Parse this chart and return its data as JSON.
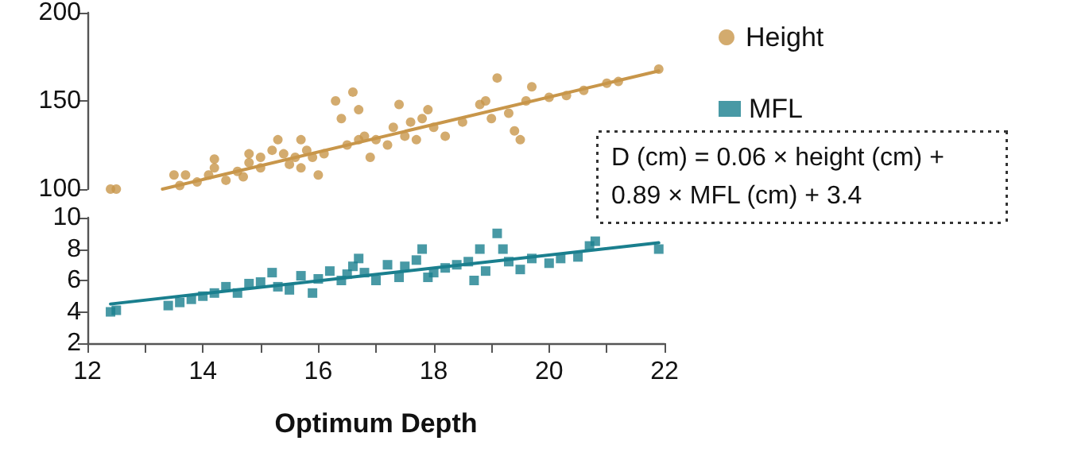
{
  "chart_data": [
    {
      "type": "scatter",
      "xlim": [
        12,
        22
      ],
      "ylim": [
        100,
        200
      ],
      "yticks": [
        100,
        150,
        200
      ],
      "tick_labels": "y",
      "marker": "circle",
      "legend": "right",
      "series": [
        {
          "name": "Height",
          "color": "#c8964a",
          "x": [
            12.4,
            12.5,
            13.5,
            13.7,
            13.6,
            13.9,
            14.1,
            14.2,
            14.2,
            14.4,
            14.6,
            14.7,
            14.8,
            14.8,
            15.0,
            15.0,
            15.2,
            15.3,
            15.4,
            15.5,
            15.6,
            15.7,
            15.7,
            15.8,
            15.9,
            16.0,
            16.1,
            16.3,
            16.4,
            16.5,
            16.6,
            16.7,
            16.7,
            16.8,
            16.9,
            17.0,
            17.2,
            17.3,
            17.4,
            17.5,
            17.6,
            17.7,
            17.8,
            17.9,
            18.0,
            18.2,
            18.5,
            18.8,
            18.9,
            19.0,
            19.1,
            19.3,
            19.4,
            19.5,
            19.6,
            19.7,
            20.0,
            20.3,
            20.6,
            21.0,
            21.2,
            21.9
          ],
          "values": [
            100,
            100,
            108,
            108,
            102,
            104,
            108,
            112,
            117,
            105,
            110,
            107,
            115,
            120,
            118,
            112,
            122,
            128,
            120,
            114,
            118,
            112,
            128,
            122,
            118,
            108,
            120,
            150,
            140,
            125,
            155,
            128,
            145,
            130,
            118,
            128,
            125,
            135,
            148,
            130,
            138,
            128,
            140,
            145,
            135,
            130,
            138,
            148,
            150,
            140,
            163,
            143,
            133,
            128,
            150,
            158,
            152,
            153,
            156,
            160,
            161,
            168
          ]
        },
        {
          "type": "line",
          "color": "#c8964a",
          "x": [
            13.3,
            21.9
          ],
          "values": [
            100,
            167
          ],
          "marker": "none"
        }
      ]
    },
    {
      "type": "scatter",
      "xlim": [
        12,
        22
      ],
      "xticks": [
        12,
        {
          "value": 13,
          "label": null
        },
        14,
        {
          "value": 15,
          "label": null
        },
        16,
        {
          "value": 17,
          "label": null
        },
        18,
        {
          "value": 19,
          "label": null
        },
        20,
        {
          "value": 21,
          "label": null
        },
        22
      ],
      "ylim": [
        2,
        10
      ],
      "yticks": [
        2,
        4,
        6,
        8,
        10
      ],
      "xlabel": "Optimum Depth",
      "marker": "square",
      "legend": "right",
      "annotations": [
        "D (cm) = 0.06 × height (cm) + 0.89 × MFL (cm) + 3.4"
      ],
      "series": [
        {
          "name": "MFL",
          "color": "#1a7f8e",
          "x": [
            12.4,
            12.5,
            13.4,
            13.6,
            13.8,
            14.0,
            14.2,
            14.4,
            14.6,
            14.8,
            15.0,
            15.2,
            15.3,
            15.5,
            15.7,
            15.9,
            16.0,
            16.2,
            16.4,
            16.5,
            16.6,
            16.7,
            16.8,
            17.0,
            17.2,
            17.4,
            17.5,
            17.7,
            17.8,
            17.9,
            18.0,
            18.2,
            18.4,
            18.6,
            18.7,
            18.8,
            18.9,
            19.1,
            19.2,
            19.3,
            19.5,
            19.7,
            20.0,
            20.2,
            20.5,
            20.7,
            20.8,
            21.9
          ],
          "values": [
            4.0,
            4.1,
            4.4,
            4.6,
            4.8,
            5.0,
            5.2,
            5.6,
            5.2,
            5.8,
            5.9,
            6.5,
            5.6,
            5.4,
            6.3,
            5.2,
            6.1,
            6.6,
            6.0,
            6.4,
            6.9,
            7.4,
            6.5,
            6.0,
            7.0,
            6.2,
            6.9,
            7.3,
            8.0,
            6.2,
            6.5,
            6.8,
            7.0,
            7.2,
            6.0,
            8.0,
            6.6,
            9.0,
            8.0,
            7.2,
            6.7,
            7.4,
            7.1,
            7.4,
            7.5,
            8.2,
            8.5,
            8.0
          ]
        },
        {
          "type": "line",
          "color": "#1a7f8e",
          "x": [
            12.4,
            21.9
          ],
          "values": [
            4.5,
            8.4
          ],
          "marker": "none"
        }
      ]
    }
  ]
}
